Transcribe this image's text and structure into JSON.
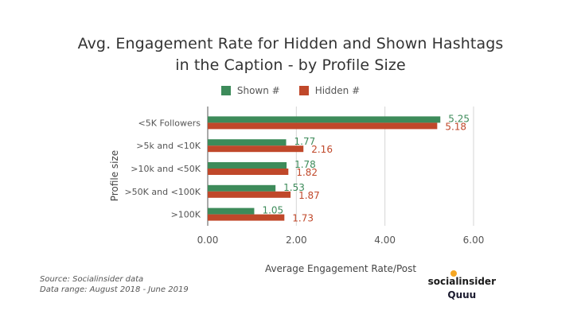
{
  "chart_data": {
    "type": "bar",
    "orientation": "horizontal",
    "title_line1": "Avg. Engagement Rate for Hidden and Shown Hashtags",
    "title_line2": "in the Caption - by Profile Size",
    "xlabel": "Average Engagement Rate/Post",
    "ylabel": "Profile size",
    "xlim": [
      0,
      6
    ],
    "xticks": [
      "0.00",
      "2.00",
      "4.00",
      "6.00"
    ],
    "grid": "vertical",
    "legend_position": "top-center",
    "categories": [
      "<5K Followers",
      ">5k and <10K",
      ">10k and <50K",
      ">50K and <100K",
      ">100K"
    ],
    "series": [
      {
        "name": "Shown #",
        "color": "#3d8b5a",
        "values": [
          5.25,
          1.77,
          1.78,
          1.53,
          1.05
        ],
        "labels": [
          "5.25",
          "1.77",
          "1.78",
          "1.53",
          "1.05"
        ]
      },
      {
        "name": "Hidden #",
        "color": "#c0482a",
        "values": [
          5.18,
          2.16,
          1.82,
          1.87,
          1.73
        ],
        "labels": [
          "5.18",
          "2.16",
          "1.82",
          "1.87",
          "1.73"
        ]
      }
    ]
  },
  "footer": {
    "source": "Source: Socialinsider data",
    "range": "Data range: August 2018 - June 2019"
  },
  "brand": {
    "primary": "socialinsider",
    "secondary": "Quuu"
  }
}
